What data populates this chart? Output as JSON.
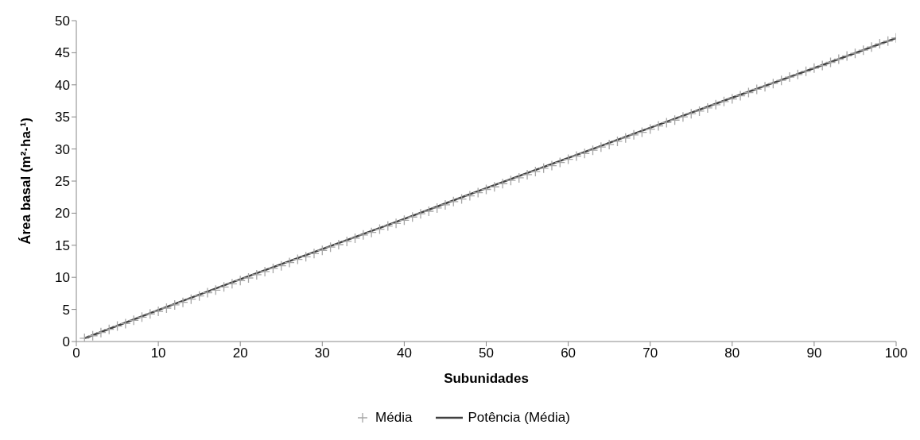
{
  "chart_data": {
    "type": "scatter",
    "xlabel": "Subunidades",
    "ylabel": "Área basal (m²·ha-¹)",
    "xlim": [
      0,
      100
    ],
    "xticks": [
      0,
      10,
      20,
      30,
      40,
      50,
      60,
      70,
      80,
      90,
      100
    ],
    "ylim": [
      0,
      50
    ],
    "yticks": [
      0,
      5,
      10,
      15,
      20,
      25,
      30,
      35,
      40,
      45,
      50
    ],
    "grid": false,
    "legend": "bottom",
    "series": [
      {
        "name": "Média",
        "type": "scatter",
        "marker": "cross",
        "color": "#a6a6a6",
        "x": [
          1,
          2,
          3,
          4,
          5,
          6,
          7,
          8,
          9,
          10,
          11,
          12,
          13,
          14,
          15,
          16,
          17,
          18,
          19,
          20,
          21,
          22,
          23,
          24,
          25,
          26,
          27,
          28,
          29,
          30,
          31,
          32,
          33,
          34,
          35,
          36,
          37,
          38,
          39,
          40,
          41,
          42,
          43,
          44,
          45,
          46,
          47,
          48,
          49,
          50,
          51,
          52,
          53,
          54,
          55,
          56,
          57,
          58,
          59,
          60,
          61,
          62,
          63,
          64,
          65,
          66,
          67,
          68,
          69,
          70,
          71,
          72,
          73,
          74,
          75,
          76,
          77,
          78,
          79,
          80,
          81,
          82,
          83,
          84,
          85,
          86,
          87,
          88,
          89,
          90,
          91,
          92,
          93,
          94,
          95,
          96,
          97,
          98,
          99,
          100
        ],
        "values": [
          0.5,
          0.9,
          1.4,
          1.9,
          2.4,
          2.8,
          3.3,
          3.8,
          4.3,
          4.7,
          5.2,
          5.7,
          6.1,
          6.6,
          7.1,
          7.6,
          8.0,
          8.5,
          9.0,
          9.5,
          9.9,
          10.4,
          10.9,
          11.4,
          11.8,
          12.3,
          12.8,
          13.2,
          13.7,
          14.2,
          14.7,
          15.1,
          15.6,
          16.1,
          16.6,
          17.0,
          17.5,
          18.0,
          18.4,
          18.9,
          19.4,
          19.9,
          20.3,
          20.8,
          21.3,
          21.8,
          22.2,
          22.7,
          23.2,
          23.7,
          24.1,
          24.6,
          25.1,
          25.5,
          26.0,
          26.5,
          27.0,
          27.4,
          27.9,
          28.4,
          28.9,
          29.3,
          29.8,
          30.3,
          30.7,
          31.2,
          31.7,
          32.2,
          32.6,
          33.1,
          33.6,
          34.1,
          34.5,
          35.0,
          35.5,
          35.9,
          36.4,
          36.9,
          37.4,
          37.8,
          38.3,
          38.8,
          39.3,
          39.7,
          40.2,
          40.7,
          41.2,
          41.6,
          42.1,
          42.6,
          43.0,
          43.5,
          44.0,
          44.5,
          44.9,
          45.4,
          45.9,
          46.4,
          46.8,
          47.3
        ]
      },
      {
        "name": "Potência (Média)",
        "type": "line",
        "marker": "none",
        "line_style": "solid",
        "color": "#404040",
        "x": [
          1,
          10,
          20,
          30,
          40,
          50,
          60,
          70,
          80,
          90,
          100
        ],
        "values": [
          0.5,
          4.9,
          9.7,
          14.4,
          19.1,
          23.9,
          28.6,
          33.3,
          38.0,
          42.6,
          47.3
        ]
      }
    ]
  }
}
